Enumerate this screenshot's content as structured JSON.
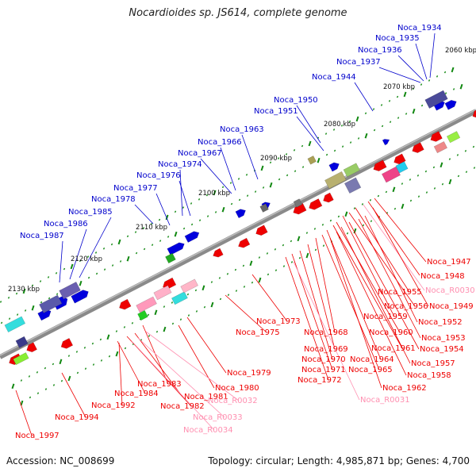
{
  "title": "Nocardioides sp. JS614, complete genome",
  "accession": "Accession: NC_008699",
  "summary": "Topology: circular; Length: 4,985,871 bp; Genes: 4,700",
  "colors": {
    "forward_label": "#0000cc",
    "reverse_label": "#ee0000",
    "rna_label": "#ff8fb0",
    "backbone": "#888888",
    "tick": "#118811",
    "forward_gene": "#0000dd",
    "reverse_gene": "#ee0000"
  },
  "scale": [
    "2060 kbp",
    "2070 kbp",
    "2080 kbp",
    "2090 kbp",
    "2100 kbp",
    "2110 kbp",
    "2120 kbp",
    "2130 kbp"
  ],
  "forward_labels": [
    "Noca_1934",
    "Noca_1935",
    "Noca_1936",
    "Noca_1937",
    "Noca_1944",
    "Noca_1950",
    "Noca_1951",
    "Noca_1963",
    "Noca_1966",
    "Noca_1967",
    "Noca_1974",
    "Noca_1976",
    "Noca_1977",
    "Noca_1978",
    "Noca_1985",
    "Noca_1986",
    "Noca_1987"
  ],
  "reverse_labels": [
    "Noca_1947",
    "Noca_1948",
    "Noca_R0030",
    "Noca_1955",
    "Noca_1949",
    "Noca_1956",
    "Noca_1959",
    "Noca_1952",
    "Noca_1953",
    "Noca_1960",
    "Noca_1973",
    "Noca_1975",
    "Noca_1968",
    "Noca_1961",
    "Noca_1954",
    "Noca_1969",
    "Noca_1964",
    "Noca_1957",
    "Noca_1970",
    "Noca_1965",
    "Noca_1971",
    "Noca_1958",
    "Noca_1972",
    "Noca_1962",
    "Noca_1979",
    "Noca_1980",
    "Noca_R0031",
    "Noca_1983",
    "Noca_1984",
    "Noca_1981",
    "Noca_R0032",
    "Noca_1992",
    "Noca_1982",
    "Noca_1994",
    "Noca_R0033",
    "Noca_R0034",
    "Noca_1997"
  ]
}
